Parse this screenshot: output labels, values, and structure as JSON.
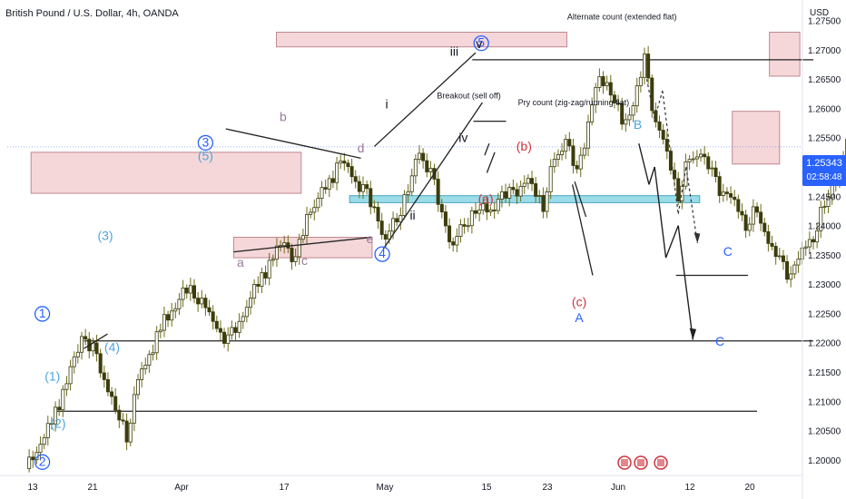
{
  "symbol_title": "British Pound / U.S. Dollar, 4h, OANDA",
  "currency": "USD",
  "last_price": "1.25343",
  "countdown": "02:58:48",
  "colors": {
    "candle": "#3c3c0c",
    "wick": "#6b6b1a",
    "zone_fill": "#f2c9cc",
    "zone_stroke": "#c08890",
    "blue_zone_fill": "#8fd8e6",
    "blue_zone_stroke": "#4aa6c0",
    "blue": "#2962ff",
    "light_blue": "#4fa5dc",
    "red": "#d0353f",
    "purple": "#9a7a9a",
    "black": "#131722"
  },
  "chart_data": {
    "type": "candlestick",
    "title": "British Pound / U.S. Dollar, 4h, OANDA",
    "ylim": [
      1.1975,
      1.2785
    ],
    "y_ticks": [
      "1.27500",
      "1.27000",
      "1.26500",
      "1.26000",
      "1.25500",
      "1.25000",
      "1.24500",
      "1.24000",
      "1.23500",
      "1.23000",
      "1.22500",
      "1.22000",
      "1.21500",
      "1.21000",
      "1.20500",
      "1.20000"
    ],
    "x_ticks": [
      "13",
      "21",
      "Apr",
      "17",
      "May",
      "15",
      "23",
      "Jun",
      "12",
      "20"
    ],
    "price_path": [
      [
        0,
        1.1985
      ],
      [
        2,
        1.205
      ],
      [
        4,
        1.215
      ],
      [
        5,
        1.221
      ],
      [
        6,
        1.2185
      ],
      [
        7,
        1.214
      ],
      [
        8,
        1.2085
      ],
      [
        9,
        1.2045
      ],
      [
        10,
        1.2135
      ],
      [
        12,
        1.2225
      ],
      [
        14,
        1.2285
      ],
      [
        15,
        1.229
      ],
      [
        16,
        1.226
      ],
      [
        17,
        1.2225
      ],
      [
        18,
        1.22
      ],
      [
        19,
        1.2235
      ],
      [
        21,
        1.2315
      ],
      [
        23,
        1.2375
      ],
      [
        24,
        1.2335
      ],
      [
        25,
        1.2415
      ],
      [
        27,
        1.2475
      ],
      [
        28,
        1.2515
      ],
      [
        29,
        1.2485
      ],
      [
        30,
        1.246
      ],
      [
        31,
        1.2425
      ],
      [
        32,
        1.2375
      ],
      [
        33,
        1.2415
      ],
      [
        34,
        1.2465
      ],
      [
        35,
        1.2525
      ],
      [
        36,
        1.249
      ],
      [
        37,
        1.2415
      ],
      [
        38,
        1.2365
      ],
      [
        39,
        1.2405
      ],
      [
        40,
        1.243
      ],
      [
        41,
        1.2425
      ],
      [
        42,
        1.244
      ],
      [
        43,
        1.2455
      ],
      [
        44,
        1.2465
      ],
      [
        45,
        1.2475
      ],
      [
        46,
        1.2435
      ],
      [
        47,
        1.2515
      ],
      [
        48,
        1.2545
      ],
      [
        49,
        1.2485
      ],
      [
        50,
        1.2575
      ],
      [
        51,
        1.2655
      ],
      [
        52,
        1.2635
      ],
      [
        53,
        1.2575
      ],
      [
        54,
        1.2605
      ],
      [
        55,
        1.268
      ],
      [
        56,
        1.2575
      ],
      [
        57,
        1.2525
      ],
      [
        58,
        1.2455
      ],
      [
        59,
        1.2515
      ],
      [
        60,
        1.2525
      ],
      [
        61,
        1.2485
      ],
      [
        62,
        1.2455
      ],
      [
        63,
        1.244
      ],
      [
        64,
        1.2405
      ],
      [
        65,
        1.2425
      ],
      [
        66,
        1.2375
      ],
      [
        67,
        1.2335
      ],
      [
        68,
        1.2315
      ],
      [
        69,
        1.2355
      ],
      [
        70,
        1.2385
      ],
      [
        71,
        1.2435
      ],
      [
        72,
        1.2485
      ],
      [
        73,
        1.2535
      ]
    ],
    "zones": [
      {
        "x0": 0.5,
        "x1": 24.5,
        "y0": 1.2455,
        "y1": 1.2525,
        "fill": "pink"
      },
      {
        "x0": 18.5,
        "x1": 30.8,
        "y0": 1.2345,
        "y1": 1.238,
        "fill": "pink"
      },
      {
        "x0": 22.3,
        "x1": 48.1,
        "y0": 1.2705,
        "y1": 1.273,
        "fill": "pink"
      },
      {
        "x0": 28.8,
        "x1": 59.9,
        "y0": 1.2439,
        "y1": 1.2451,
        "fill": "blue"
      },
      {
        "x0": 62.8,
        "x1": 67.0,
        "y0": 1.2505,
        "y1": 1.2595,
        "fill": "pink"
      },
      {
        "x0": 66.1,
        "x1": 68.8,
        "y0": 1.2655,
        "y1": 1.273,
        "fill": "pink"
      }
    ],
    "hlines": [
      {
        "x0": 5.2,
        "x1": 70.0,
        "y": 1.2203
      },
      {
        "x0": 2.5,
        "x1": 65.0,
        "y": 1.2083
      },
      {
        "x0": 39.7,
        "x1": 70.0,
        "y": 1.2683
      },
      {
        "x0": 57.8,
        "x1": 64.2,
        "y": 1.2315
      },
      {
        "x0": 39.8,
        "x1": 42.7,
        "y": 1.2578
      }
    ],
    "annotations": [
      {
        "text": "1",
        "x": 1.5,
        "y": 1.2243,
        "color": "blue",
        "circled": true
      },
      {
        "text": "2",
        "x": 1.5,
        "y": 1.199,
        "color": "blue",
        "circled": true
      },
      {
        "text": "3",
        "x": 16.0,
        "y": 1.2535,
        "color": "blue",
        "circled": true
      },
      {
        "text": "4",
        "x": 31.7,
        "y": 1.2345,
        "color": "blue",
        "circled": true
      },
      {
        "text": "5",
        "x": 40.5,
        "y": 1.2705,
        "color": "blue",
        "circled": true
      },
      {
        "text": "(1)",
        "x": 2.4,
        "y": 1.2135,
        "color": "lightblue"
      },
      {
        "text": "(2)",
        "x": 2.9,
        "y": 1.2055,
        "color": "lightblue"
      },
      {
        "text": "(3)",
        "x": 7.1,
        "y": 1.2375,
        "color": "lightblue"
      },
      {
        "text": "(4)",
        "x": 7.7,
        "y": 1.2185,
        "color": "lightblue"
      },
      {
        "text": "(5)",
        "x": 16.0,
        "y": 1.2512,
        "color": "lightblue"
      },
      {
        "text": "a",
        "x": 19.1,
        "y": 1.233,
        "color": "purple"
      },
      {
        "text": "b",
        "x": 22.9,
        "y": 1.2578,
        "color": "purple"
      },
      {
        "text": "c",
        "x": 24.8,
        "y": 1.2333,
        "color": "purple"
      },
      {
        "text": "d",
        "x": 29.8,
        "y": 1.2525,
        "color": "purple"
      },
      {
        "text": "e",
        "x": 30.6,
        "y": 1.237,
        "color": "purple"
      },
      {
        "text": "i",
        "x": 32.1,
        "y": 1.26,
        "color": "black"
      },
      {
        "text": "ii",
        "x": 34.4,
        "y": 1.241,
        "color": "black"
      },
      {
        "text": "iii",
        "x": 38.1,
        "y": 1.269,
        "color": "black"
      },
      {
        "text": "iv",
        "x": 38.9,
        "y": 1.2543,
        "color": "black"
      },
      {
        "text": "v",
        "x": 40.3,
        "y": 1.2703,
        "color": "black"
      },
      {
        "text": "(a)",
        "x": 40.9,
        "y": 1.2438,
        "color": "red"
      },
      {
        "text": "(b)",
        "x": 44.3,
        "y": 1.2528,
        "color": "red"
      },
      {
        "text": "(c)",
        "x": 49.2,
        "y": 1.2262,
        "color": "red"
      },
      {
        "text": "A",
        "x": 49.2,
        "y": 1.2235,
        "color": "blue"
      },
      {
        "text": "B",
        "x": 54.4,
        "y": 1.2565,
        "color": "lightblue"
      },
      {
        "text": "C",
        "x": 61.7,
        "y": 1.2195,
        "color": "blue"
      },
      {
        "text": "C",
        "x": 62.4,
        "y": 1.2348,
        "color": "blue"
      },
      {
        "text": "Alternate count (extended flat)",
        "x": 53.0,
        "y": 1.2752,
        "color": "black",
        "small": true
      },
      {
        "text": "Pry count (zig-zag/running flat)",
        "x": 48.7,
        "y": 1.2605,
        "color": "black",
        "small": true
      },
      {
        "text": "Breakout (sell off)",
        "x": 39.4,
        "y": 1.2617,
        "color": "black",
        "small": true
      }
    ]
  }
}
